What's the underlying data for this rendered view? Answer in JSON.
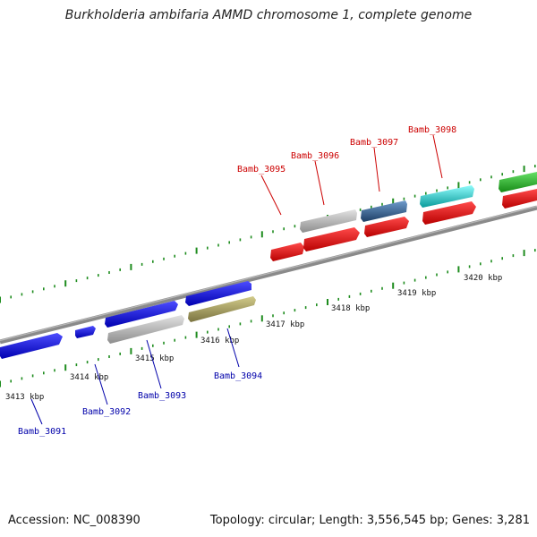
{
  "title": "Burkholderia ambifaria AMMD chromosome 1, complete genome",
  "footer": {
    "accession": "Accession: NC_008390",
    "summary": "Topology: circular; Length: 3,556,545 bp; Genes: 3,281"
  },
  "colors": {
    "backbone": "#8a8a8a",
    "tick": "#1e8c1e",
    "top_label": "#cc0000",
    "bottom_label": "#0000aa",
    "blue_gene": "#1a1ae6",
    "red_gene": "#ee1111",
    "gray_gene": "#c4c4c4",
    "olive_gene": "#b5ae6a",
    "steel_gene": "#4f7fb0",
    "cyan_gene": "#22eeee",
    "green_gene": "#33cc33"
  },
  "kbp_labels": [
    "3413 kbp",
    "3414 kbp",
    "3415 kbp",
    "3416 kbp",
    "3417 kbp",
    "3418 kbp",
    "3419 kbp",
    "3420 kbp"
  ],
  "gene_labels_top": [
    "Bamb_3095",
    "Bamb_3096",
    "Bamb_3097",
    "Bamb_3098"
  ],
  "gene_labels_bottom": [
    "Bamb_3091",
    "Bamb_3092",
    "Bamb_3093",
    "Bamb_3094"
  ]
}
